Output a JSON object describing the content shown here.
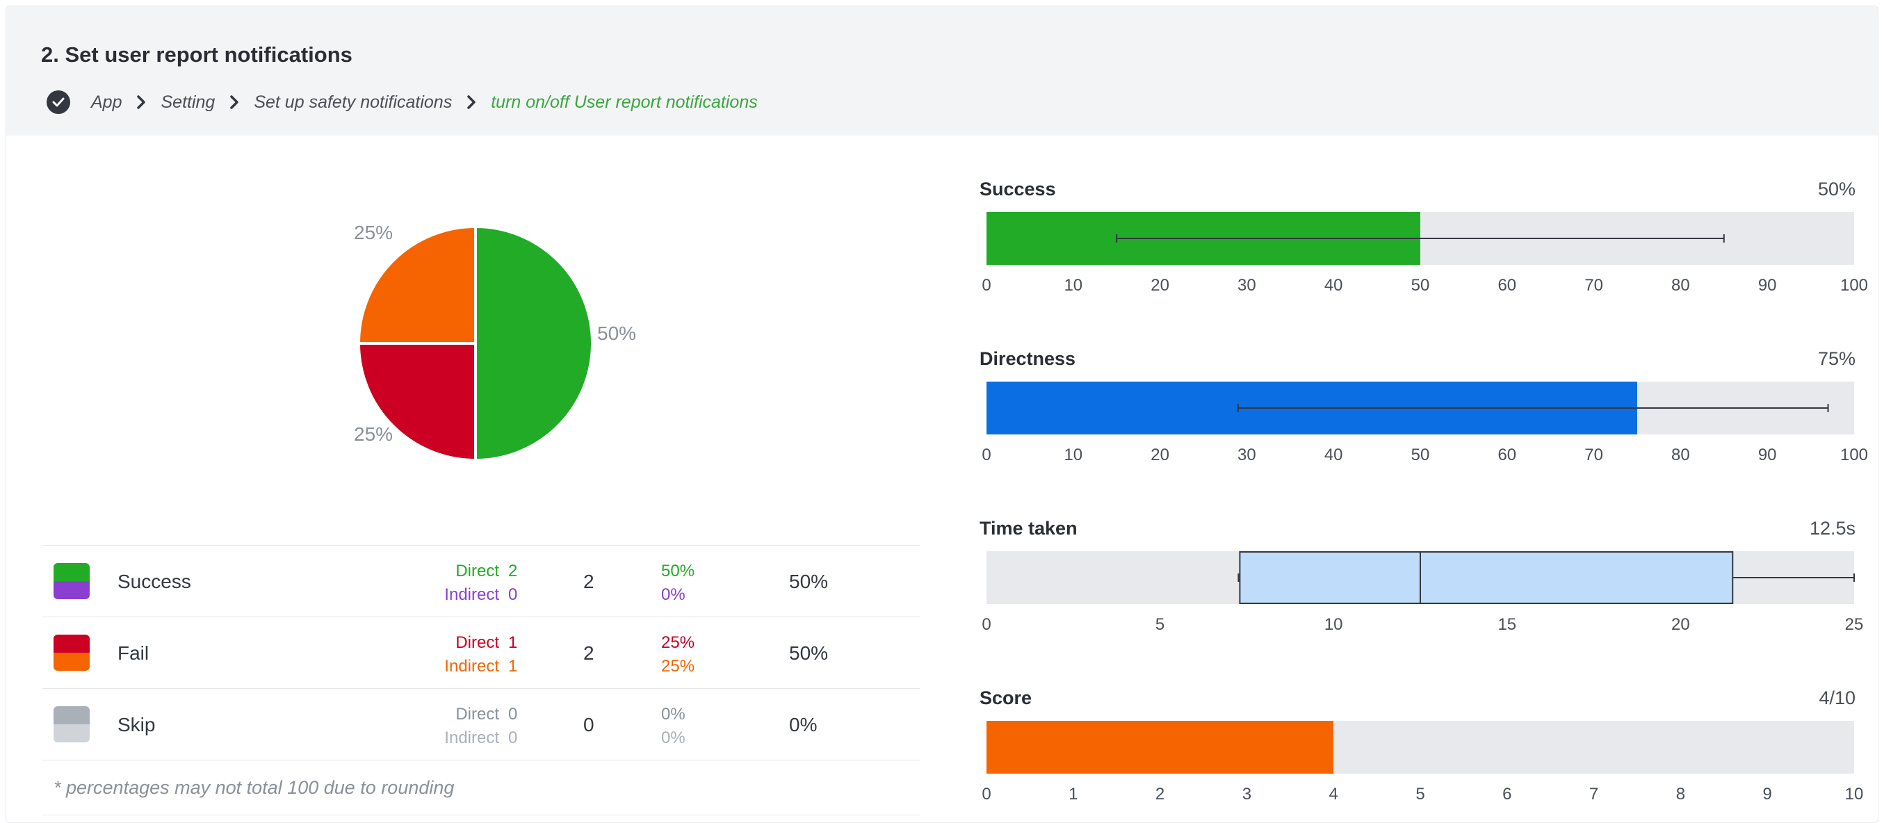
{
  "task": {
    "title": "2. Set user report notifications",
    "breadcrumb": [
      "App",
      "Setting",
      "Set up safety notifications",
      "turn on/off User report notifications"
    ]
  },
  "colors": {
    "success": "#22ab27",
    "fail": "#cc0022",
    "fail_indirect": "#f56400",
    "indirect_success": "#8a3fd0",
    "skip": "#a9b0b8",
    "skip_indirect": "#d0d4d9",
    "directness": "#0b6fe3",
    "score": "#f56400",
    "box": "#c0dcfb",
    "text_muted": "#8a9099"
  },
  "pie": {
    "slices": [
      {
        "name": "Success",
        "value": 50,
        "label": "50%",
        "color": "#22ab27"
      },
      {
        "name": "Fail",
        "value": 25,
        "label": "25%",
        "color": "#cc0022"
      },
      {
        "name": "Fail indirect",
        "value": 25,
        "label": "25%",
        "color": "#f56400"
      }
    ]
  },
  "results": {
    "rows": [
      {
        "name": "Success",
        "direct_label": "Direct",
        "indirect_label": "Indirect",
        "direct_count": "2",
        "indirect_count": "0",
        "total": "2",
        "direct_pct": "50%",
        "indirect_pct": "0%",
        "overall": "50%"
      },
      {
        "name": "Fail",
        "direct_label": "Direct",
        "indirect_label": "Indirect",
        "direct_count": "1",
        "indirect_count": "1",
        "total": "2",
        "direct_pct": "25%",
        "indirect_pct": "25%",
        "overall": "50%"
      },
      {
        "name": "Skip",
        "direct_label": "Direct",
        "indirect_label": "Indirect",
        "direct_count": "0",
        "indirect_count": "0",
        "total": "0",
        "direct_pct": "0%",
        "indirect_pct": "0%",
        "overall": "0%"
      }
    ],
    "footnote": "* percentages may not total 100 due to rounding"
  },
  "chart_data": [
    {
      "type": "pie",
      "values": [
        50,
        25,
        25
      ],
      "labels": [
        "50%",
        "25%",
        "25%"
      ]
    },
    {
      "type": "bar",
      "title": "Success",
      "value_label": "50%",
      "value": 50,
      "xlim": [
        0,
        100
      ],
      "ticks": [
        "0",
        "10",
        "20",
        "30",
        "40",
        "50",
        "60",
        "70",
        "80",
        "90",
        "100"
      ],
      "error_range": [
        15,
        85
      ]
    },
    {
      "type": "bar",
      "title": "Directness",
      "value_label": "75%",
      "value": 75,
      "xlim": [
        0,
        100
      ],
      "ticks": [
        "0",
        "10",
        "20",
        "30",
        "40",
        "50",
        "60",
        "70",
        "80",
        "90",
        "100"
      ],
      "error_range": [
        29,
        97
      ]
    },
    {
      "type": "box",
      "title": "Time taken",
      "value_label": "12.5s",
      "xlim": [
        0,
        25
      ],
      "ticks": [
        "0",
        "5",
        "10",
        "15",
        "20",
        "25"
      ],
      "whisker_low": 7.3,
      "q1": 7.3,
      "median": 12.5,
      "q3": 21.5,
      "whisker_high": 25
    },
    {
      "type": "bar",
      "title": "Score",
      "value_label": "4/10",
      "value": 4,
      "xlim": [
        0,
        10
      ],
      "ticks": [
        "0",
        "1",
        "2",
        "3",
        "4",
        "5",
        "6",
        "7",
        "8",
        "9",
        "10"
      ]
    }
  ]
}
